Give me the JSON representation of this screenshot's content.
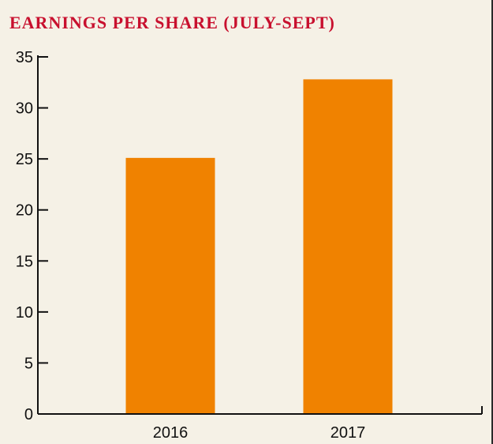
{
  "colors": {
    "background": "#f5f1e6",
    "title": "#c8102e",
    "bar": "#f08200",
    "axis": "#111111"
  },
  "chart_data": {
    "type": "bar",
    "title": "EARNINGS PER SHARE (JULY-SEPT)",
    "xlabel": "",
    "ylabel": "",
    "categories": [
      "2016",
      "2017"
    ],
    "values": [
      25.1,
      32.8
    ],
    "ylim": [
      0,
      35
    ],
    "yticks": [
      0,
      5,
      10,
      15,
      20,
      25,
      30,
      35
    ],
    "grid": false
  }
}
